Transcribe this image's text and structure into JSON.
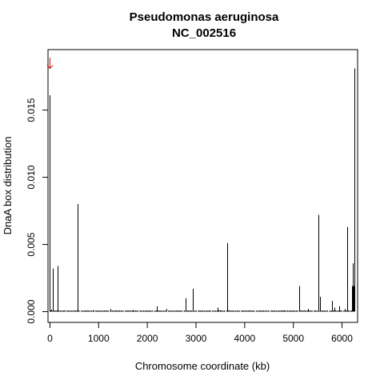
{
  "chart_data": {
    "type": "bar",
    "title": "Pseudomonas aeruginosa",
    "subtitle": "NC_002516",
    "xlabel": "Chromosome coordinate (kb)",
    "ylabel": "DnaA box distribution",
    "xlim": [
      -40,
      6320
    ],
    "ylim": [
      -0.0008,
      0.0195
    ],
    "xticks": [
      0,
      1000,
      2000,
      3000,
      4000,
      5000,
      6000
    ],
    "yticks": [
      0.0,
      0.005,
      0.01,
      0.015
    ],
    "ytick_labels": [
      "0.000",
      "0.005",
      "0.010",
      "0.015"
    ],
    "grid": false,
    "legend": "none",
    "annotation": {
      "type": "arrow-down",
      "x": 0,
      "y_top": 0.0189,
      "y_bottom": 0.0181
    },
    "x": [
      0,
      20,
      60,
      160,
      560,
      2780,
      2930,
      3640,
      5120,
      5520,
      5540,
      5800,
      6100,
      6200,
      6220,
      6240,
      6250,
      6260,
      300,
      900,
      1250,
      1700,
      2200,
      2400,
      3450,
      3500,
      4000,
      4450,
      4800,
      5300,
      5850,
      5950,
      6050
    ],
    "values": [
      0.0161,
      0.00015,
      0.0032,
      0.0034,
      0.008,
      0.001,
      0.0017,
      0.0051,
      0.0019,
      0.0072,
      0.0011,
      0.0008,
      0.0063,
      0.0019,
      0.0036,
      0.0019,
      0.0181,
      0.002,
      0.0001,
      0.0001,
      0.0002,
      0.0001,
      0.0004,
      0.0002,
      0.0003,
      0.0001,
      0.0001,
      0.0001,
      0.0001,
      0.0002,
      0.0003,
      0.0004,
      0.0002
    ],
    "colors": {
      "bars": "#000000",
      "annotation": "#cc0000",
      "axis": "#000000"
    }
  }
}
